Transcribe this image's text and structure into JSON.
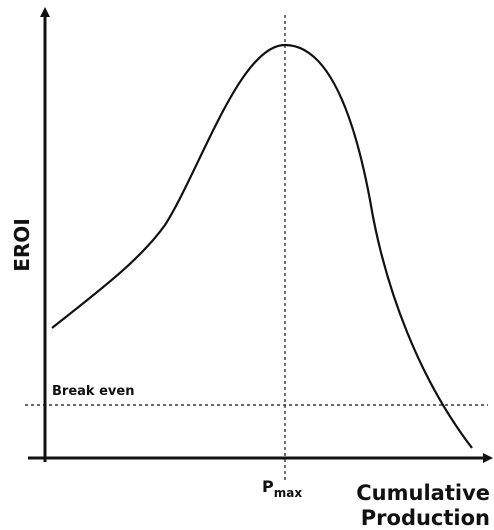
{
  "axes": {
    "y_label": "EROI",
    "x_label": [
      "Cumulative",
      "Production"
    ]
  },
  "annotations": {
    "break_even": "Break even",
    "p_max": {
      "base": "P",
      "subscript": "max"
    }
  }
}
